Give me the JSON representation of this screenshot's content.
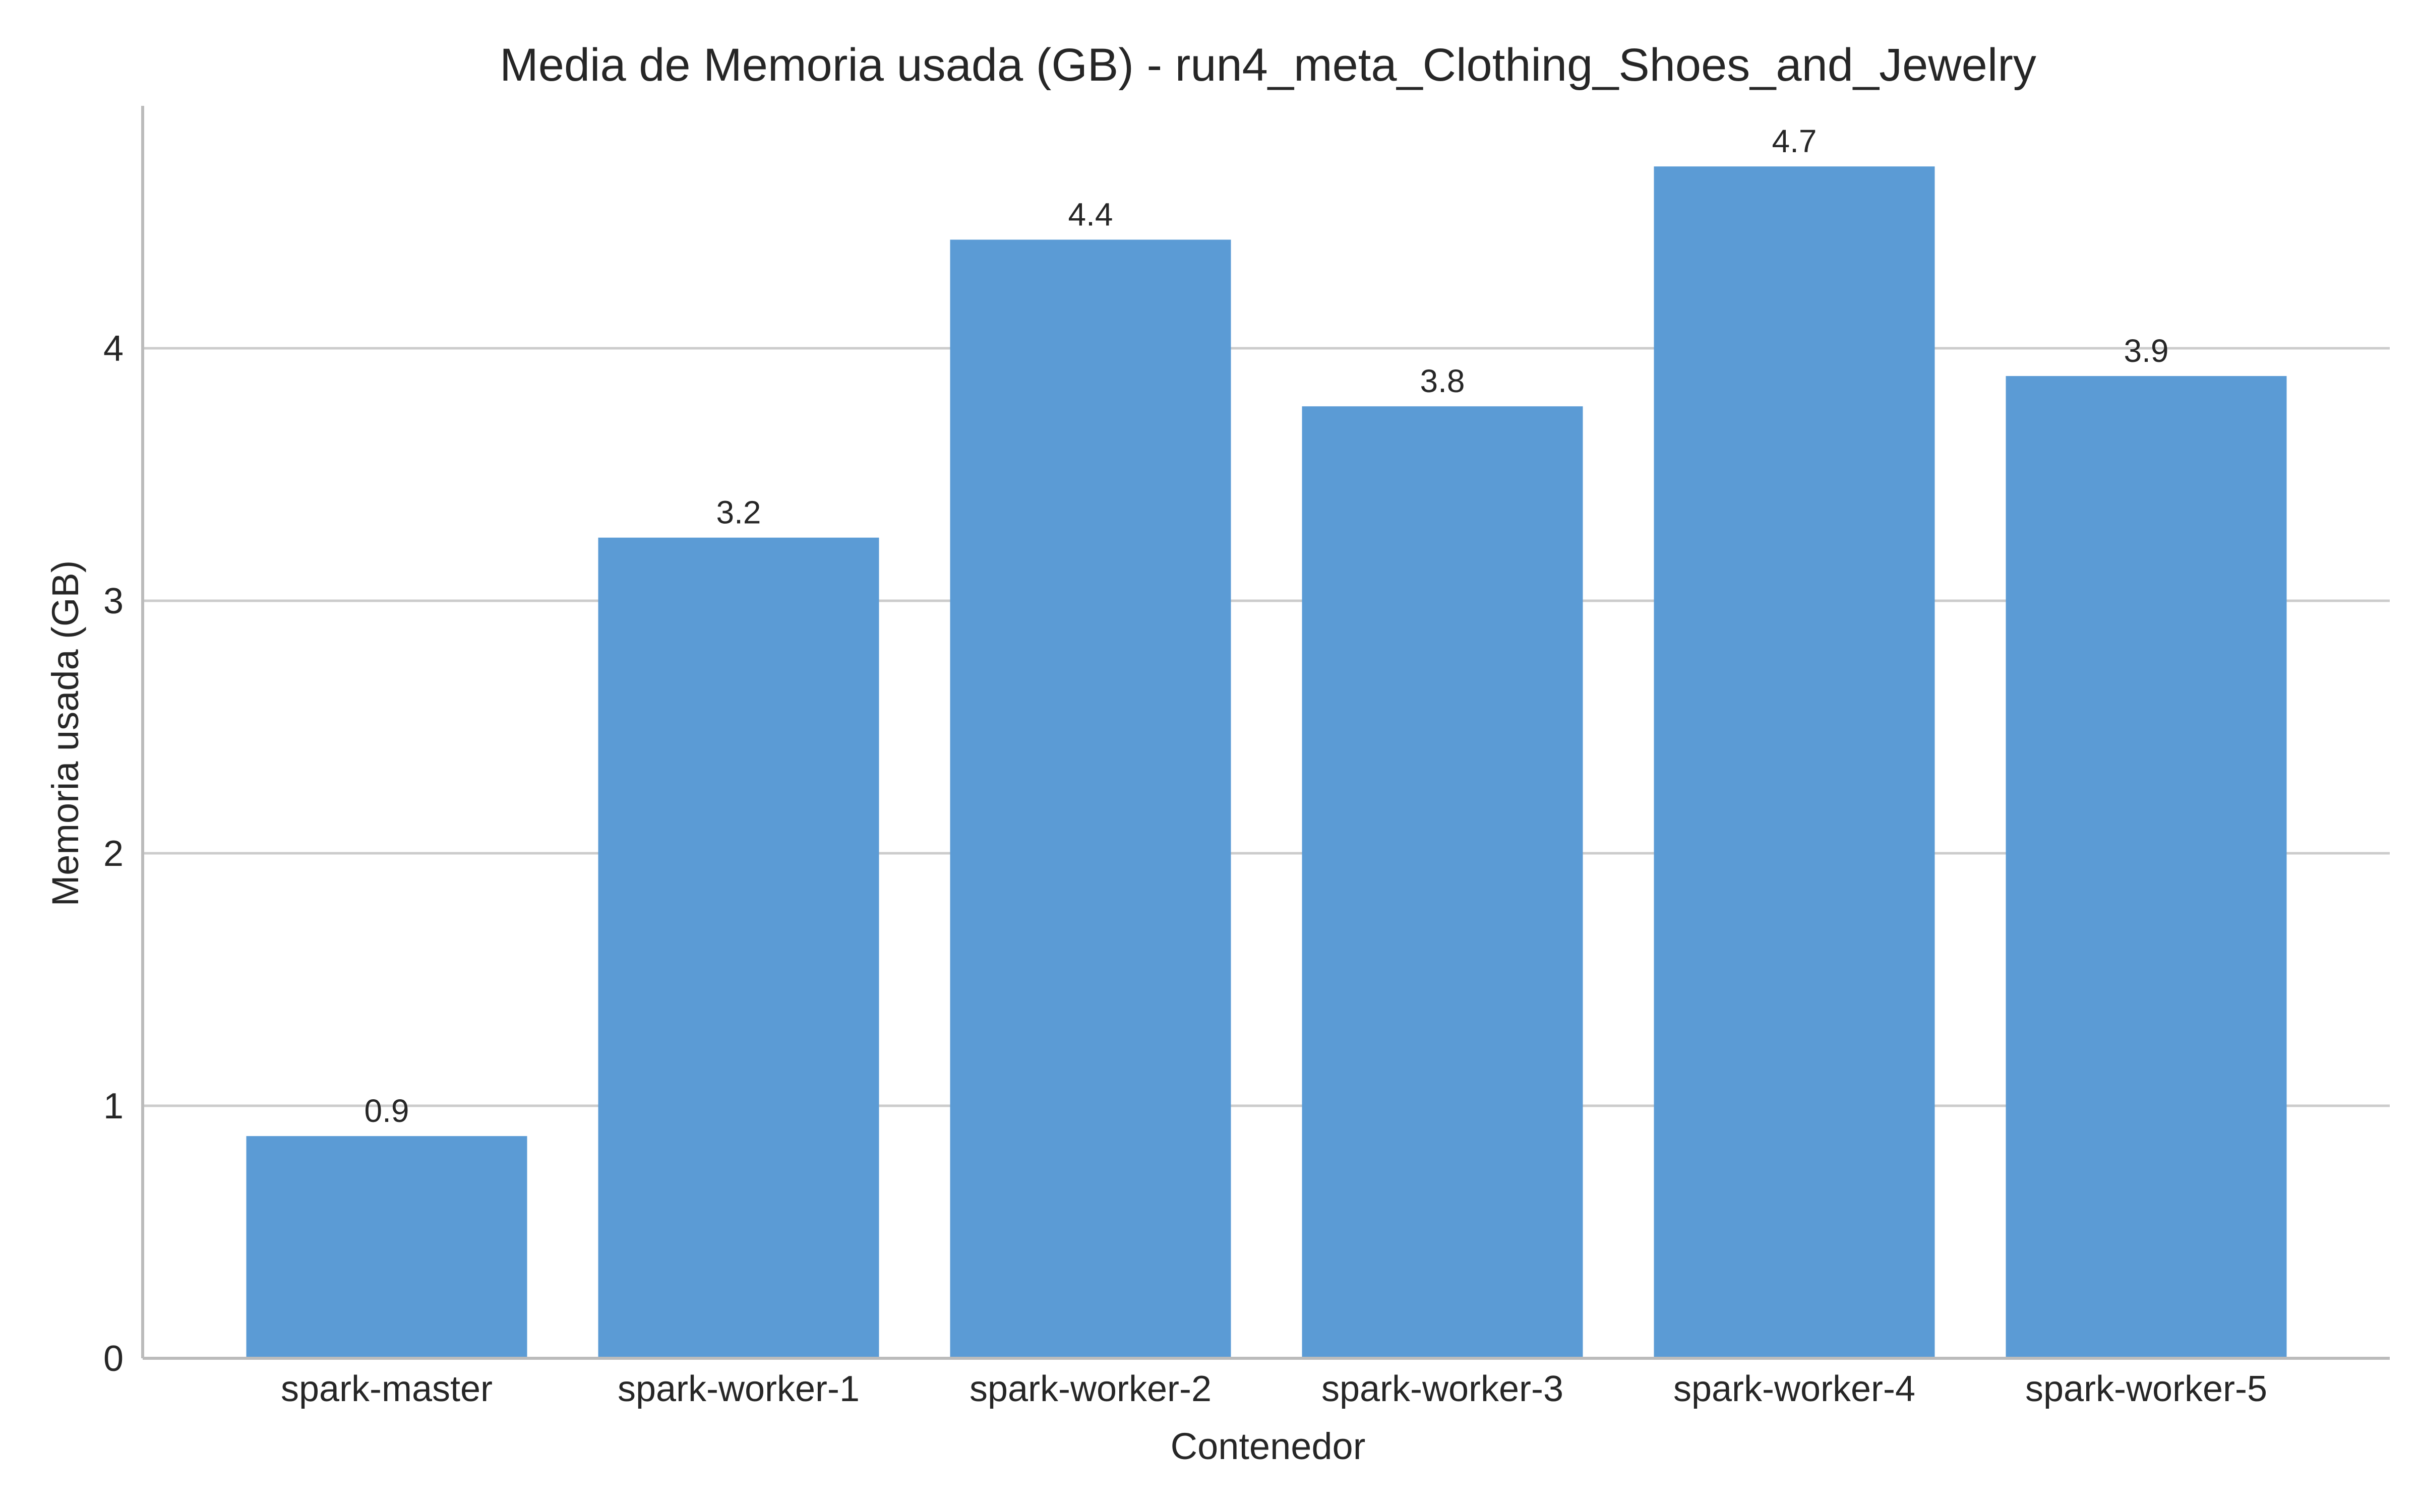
{
  "chart_data": {
    "type": "bar",
    "title": "Media de Memoria usada (GB) - run4_meta_Clothing_Shoes_and_Jewelry",
    "xlabel": "Contenedor",
    "ylabel": "Memoria usada (GB)",
    "categories": [
      "spark-master",
      "spark-worker-1",
      "spark-worker-2",
      "spark-worker-3",
      "spark-worker-4",
      "spark-worker-5"
    ],
    "values": [
      0.88,
      3.25,
      4.43,
      3.77,
      4.72,
      3.89
    ],
    "value_labels": [
      "0.9",
      "3.2",
      "4.4",
      "3.8",
      "4.7",
      "3.9"
    ],
    "yticks": [
      0,
      1,
      2,
      3,
      4
    ],
    "ytick_labels": [
      "0",
      "1",
      "2",
      "3",
      "4"
    ],
    "ylim": [
      0,
      4.96
    ],
    "grid": "horizontal",
    "bar_color": "#5b9bd5",
    "grid_color": "#cccccc",
    "axis_color": "#bbbbbb",
    "text_color": "#262626"
  }
}
